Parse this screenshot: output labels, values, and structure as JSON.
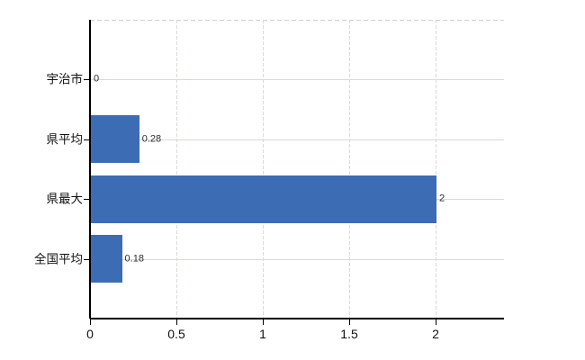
{
  "chart_data": {
    "type": "bar",
    "orientation": "horizontal",
    "title": "",
    "xlabel": "",
    "ylabel": "",
    "categories": [
      "宇治市",
      "県平均",
      "県最大",
      "全国平均"
    ],
    "values": [
      0,
      0.28,
      2,
      0.18
    ],
    "data_labels": [
      "0",
      "0.28",
      "2",
      "0.18"
    ],
    "x_ticks": [
      0,
      0.5,
      1,
      1.5,
      2
    ],
    "x_tick_labels": [
      "0",
      "0.5",
      "1",
      "1.5",
      "2"
    ],
    "xlim": [
      0,
      2.4
    ],
    "grid": true,
    "legend": false,
    "bar_color": "#3c6cb4",
    "gridline_color": "#d6dcd4",
    "axis_color": "#000000",
    "background_color": "#ffffff"
  }
}
